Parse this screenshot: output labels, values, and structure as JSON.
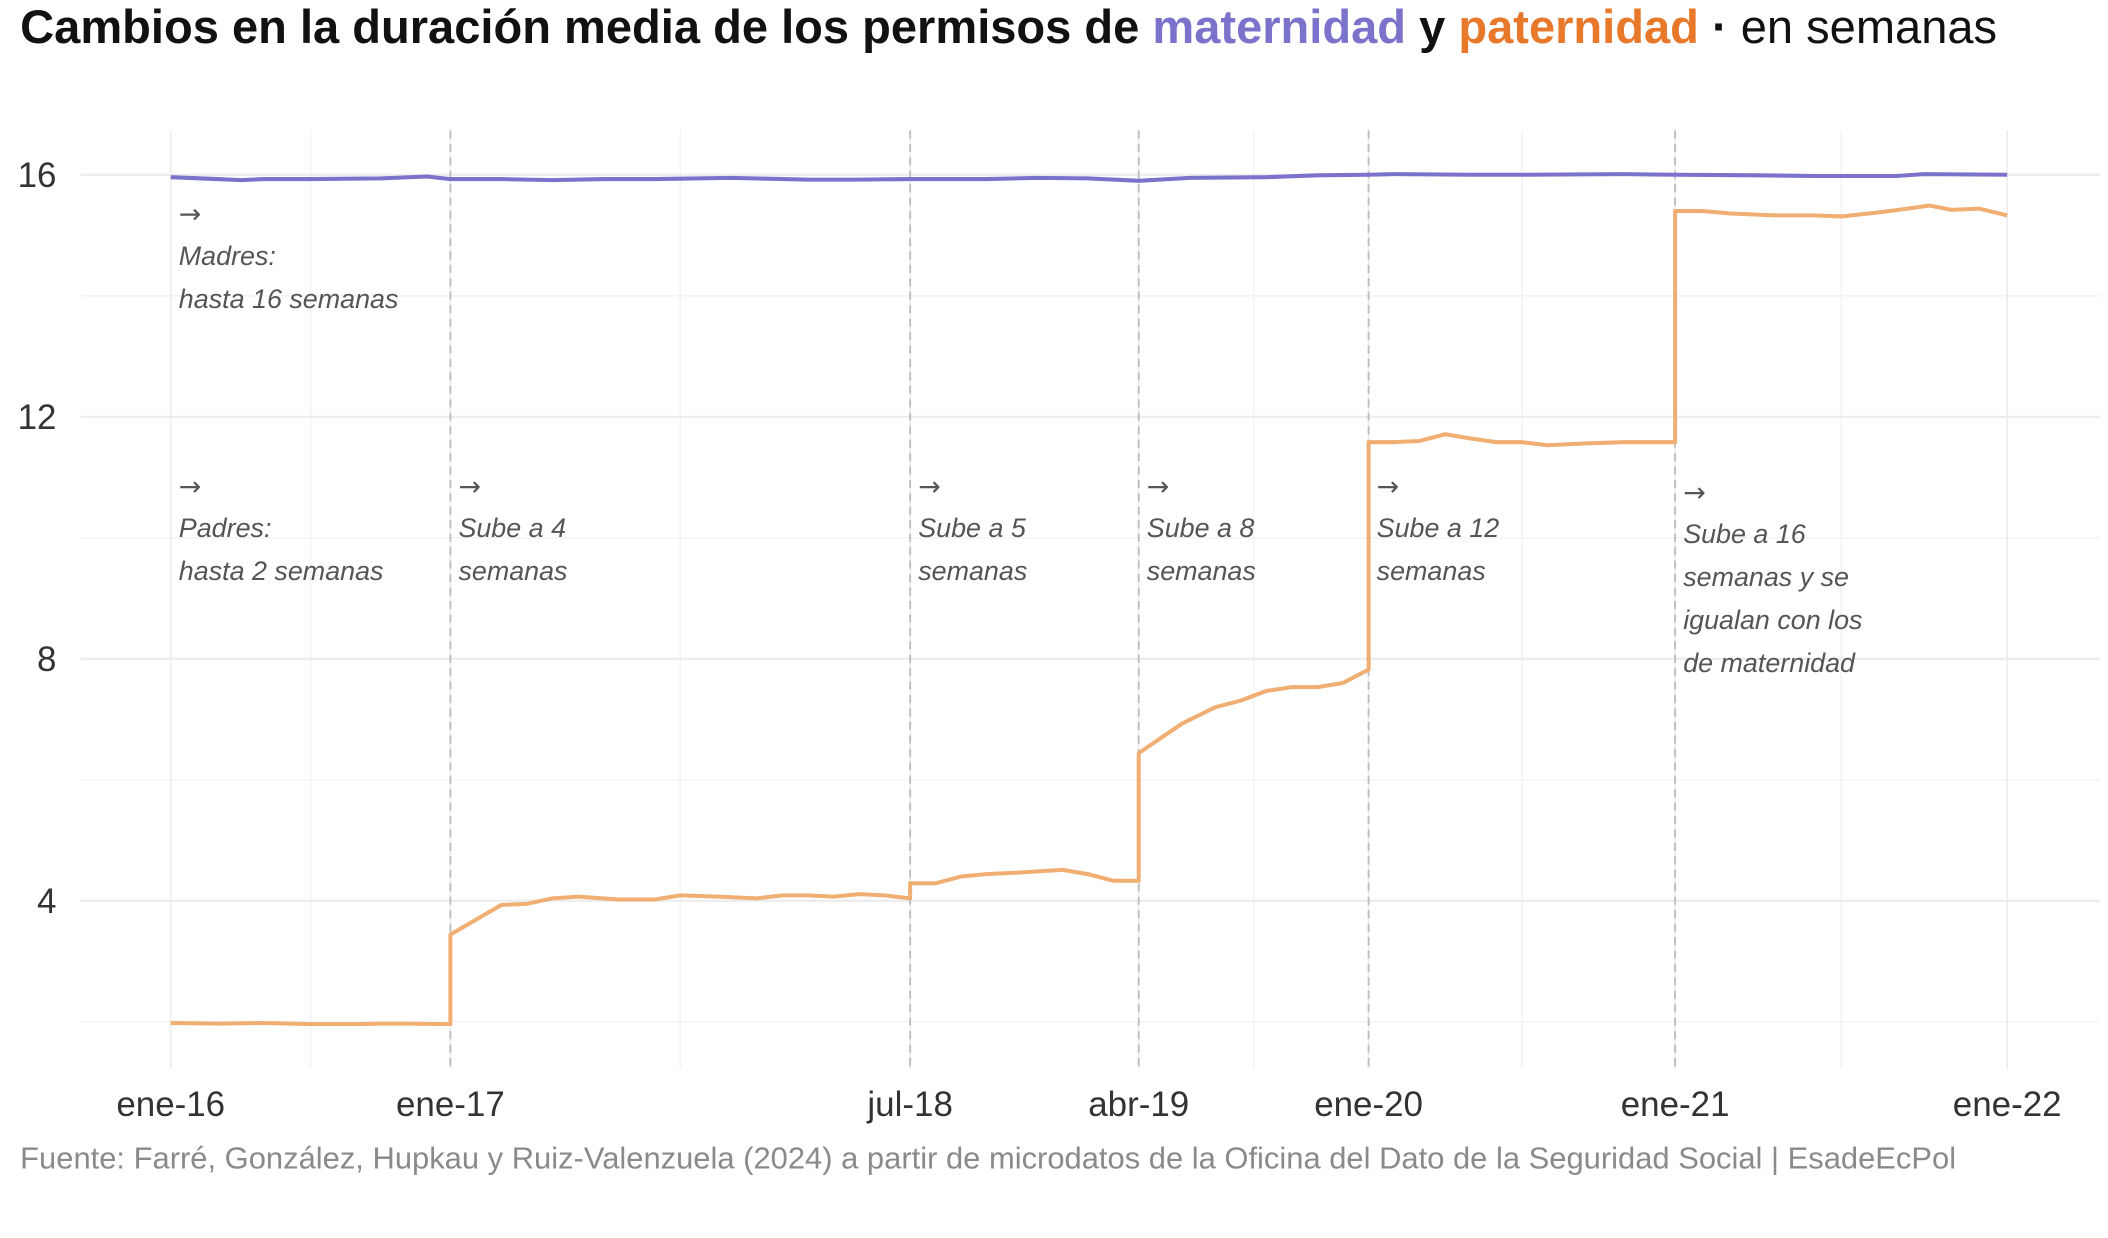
{
  "title": {
    "part1": "Cambios en la duración media de los permisos de ",
    "maternidad": "maternidad",
    "y": " y ",
    "paternidad": "paternidad",
    "dot": " · ",
    "part2": "en semanas"
  },
  "caption": "Fuente: Farré, González, Hupkau y Ruiz-Valenzuela (2024) a partir de microdatos de la Oficina del Dato de la Seguridad Social | EsadeEcPol",
  "colors": {
    "maternidad": "#7b72cc",
    "paternidad": "#f0ae72",
    "title_paternidad": "#e8782a"
  },
  "chart_data": {
    "type": "line",
    "title": "Cambios en la duración media de los permisos de maternidad y paternidad · en semanas",
    "xlabel": "",
    "ylabel": "",
    "x_unit": "months since ene-16",
    "ylim": [
      1.35,
      16.7
    ],
    "yticks": [
      4,
      8,
      12,
      16
    ],
    "xticks": [
      {
        "month": 0,
        "label": "ene-16"
      },
      {
        "month": 12,
        "label": "ene-17"
      },
      {
        "month": 30,
        "label": "jul-18"
      },
      {
        "month": 39,
        "label": "abr-19"
      },
      {
        "month": 48,
        "label": "ene-20"
      },
      {
        "month": 60,
        "label": "ene-21"
      },
      {
        "month": 72,
        "label": "ene-22"
      }
    ],
    "reform_lines": [
      12,
      30,
      39,
      48,
      60
    ],
    "grid": true,
    "series": [
      {
        "name": "maternidad",
        "color": "#7b72cc",
        "points": [
          [
            0,
            15.96
          ],
          [
            2,
            15.93
          ],
          [
            3,
            15.91
          ],
          [
            4,
            15.93
          ],
          [
            6,
            15.93
          ],
          [
            9,
            15.94
          ],
          [
            11,
            15.97
          ],
          [
            12,
            15.93
          ],
          [
            14,
            15.93
          ],
          [
            16,
            15.91
          ],
          [
            18,
            15.93
          ],
          [
            20,
            15.93
          ],
          [
            23,
            15.95
          ],
          [
            26,
            15.92
          ],
          [
            28,
            15.92
          ],
          [
            30,
            15.93
          ],
          [
            33,
            15.93
          ],
          [
            35,
            15.95
          ],
          [
            37,
            15.94
          ],
          [
            39,
            15.9
          ],
          [
            41,
            15.95
          ],
          [
            44,
            15.96
          ],
          [
            46,
            15.99
          ],
          [
            48,
            16.0
          ],
          [
            49,
            16.01
          ],
          [
            52,
            16.0
          ],
          [
            54,
            16.0
          ],
          [
            58,
            16.01
          ],
          [
            60,
            16.0
          ],
          [
            63,
            15.99
          ],
          [
            65,
            15.98
          ],
          [
            68,
            15.98
          ],
          [
            69,
            16.01
          ],
          [
            72,
            16.0
          ]
        ]
      },
      {
        "name": "paternidad",
        "color": "#f0ae72",
        "points": [
          [
            0,
            1.98
          ],
          [
            2,
            1.97
          ],
          [
            4,
            1.98
          ],
          [
            6,
            1.96
          ],
          [
            8,
            1.96
          ],
          [
            9,
            1.97
          ],
          [
            10,
            1.97
          ],
          [
            12,
            1.96
          ],
          [
            12,
            3.44
          ],
          [
            14,
            3.93
          ],
          [
            15,
            3.95
          ],
          [
            16,
            4.04
          ],
          [
            17,
            4.07
          ],
          [
            18.6,
            4.02
          ],
          [
            20,
            4.02
          ],
          [
            21,
            4.09
          ],
          [
            22.5,
            4.07
          ],
          [
            24,
            4.04
          ],
          [
            25,
            4.09
          ],
          [
            26,
            4.09
          ],
          [
            27,
            4.07
          ],
          [
            28,
            4.11
          ],
          [
            29,
            4.09
          ],
          [
            30,
            4.04
          ],
          [
            30,
            4.29
          ],
          [
            31,
            4.29
          ],
          [
            32,
            4.4
          ],
          [
            33,
            4.44
          ],
          [
            34.4,
            4.47
          ],
          [
            36,
            4.51
          ],
          [
            37,
            4.44
          ],
          [
            38,
            4.33
          ],
          [
            39,
            4.33
          ],
          [
            39,
            6.44
          ],
          [
            40.7,
            6.93
          ],
          [
            42,
            7.2
          ],
          [
            43,
            7.31
          ],
          [
            44,
            7.47
          ],
          [
            45,
            7.53
          ],
          [
            46,
            7.53
          ],
          [
            47,
            7.6
          ],
          [
            48,
            7.82
          ],
          [
            48,
            11.58
          ],
          [
            49,
            11.58
          ],
          [
            50,
            11.6
          ],
          [
            51,
            11.71
          ],
          [
            52,
            11.64
          ],
          [
            53,
            11.58
          ],
          [
            54,
            11.58
          ],
          [
            55,
            11.53
          ],
          [
            56.5,
            11.56
          ],
          [
            58,
            11.58
          ],
          [
            60,
            11.58
          ],
          [
            60,
            15.4
          ],
          [
            61,
            15.4
          ],
          [
            62,
            15.36
          ],
          [
            63.6,
            15.33
          ],
          [
            65,
            15.33
          ],
          [
            66,
            15.31
          ],
          [
            67.4,
            15.38
          ],
          [
            68.4,
            15.44
          ],
          [
            69.2,
            15.49
          ],
          [
            70,
            15.42
          ],
          [
            71,
            15.44
          ],
          [
            72,
            15.33
          ]
        ]
      }
    ],
    "annotations": [
      {
        "month": 0,
        "value": 15.2,
        "arrow": "→",
        "lines": [
          "Madres:",
          "hasta 16 semanas"
        ]
      },
      {
        "month": 0,
        "value": 10.7,
        "arrow": "→",
        "lines": [
          "Padres:",
          "hasta 2 semanas"
        ]
      },
      {
        "month": 12,
        "value": 10.7,
        "arrow": "→",
        "lines": [
          "Sube a 4",
          "semanas"
        ]
      },
      {
        "month": 30,
        "value": 10.7,
        "arrow": "→",
        "lines": [
          "Sube a 5",
          "semanas"
        ]
      },
      {
        "month": 39,
        "value": 10.7,
        "arrow": "→",
        "lines": [
          "Sube a 8",
          "semanas"
        ]
      },
      {
        "month": 48,
        "value": 10.7,
        "arrow": "→",
        "lines": [
          "Sube a 12",
          "semanas"
        ]
      },
      {
        "month": 60,
        "value": 10.6,
        "arrow": "→",
        "lines": [
          "Sube a 16",
          "semanas y se",
          "igualan con los",
          "de maternidad"
        ]
      }
    ]
  }
}
